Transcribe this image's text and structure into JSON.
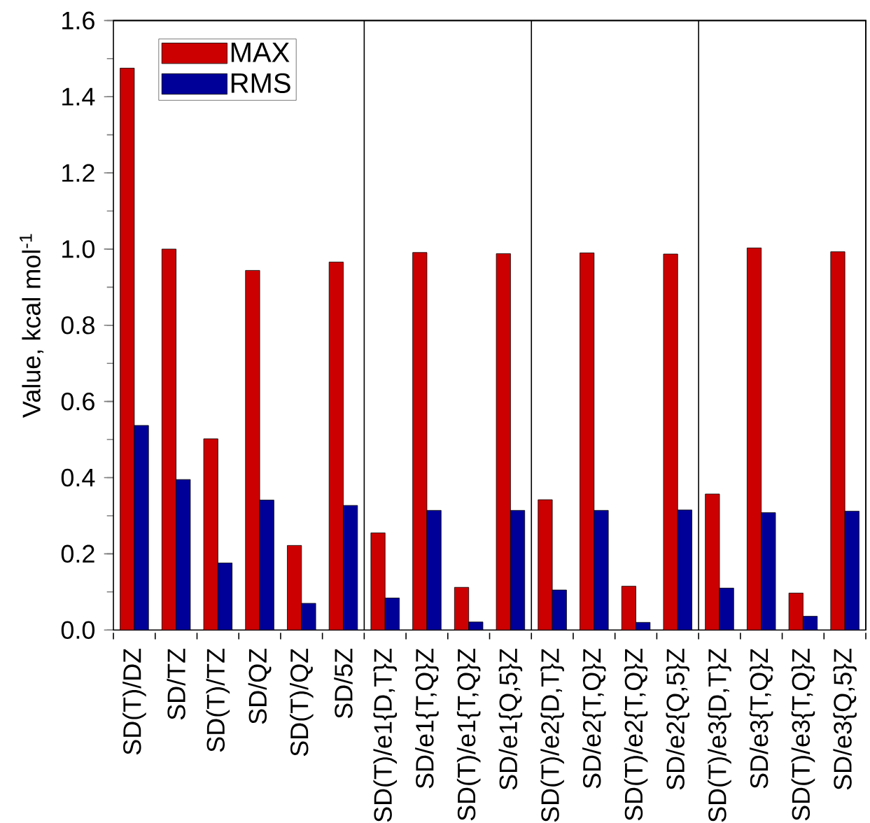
{
  "chart_data": {
    "type": "bar",
    "ylabel": "Value, kcal mol$^{-1}$",
    "categories": [
      "SD(T)/DZ",
      "SD/TZ",
      "SD(T)/TZ",
      "SD/QZ",
      "SD(T)/QZ",
      "SD/5Z",
      "SD(T)/e1{D,T}Z",
      "SD/e1{T,Q}Z",
      "SD(T)/e1{T,Q}Z",
      "SD/e1{Q,5}Z",
      "SD(T)/e2{D,T}Z",
      "SD/e2{T,Q}Z",
      "SD(T)/e2{T,Q}Z",
      "SD/e2{Q,5}Z",
      "SD(T)/e3{D,T}Z",
      "SD/e3{T,Q}Z",
      "SD(T)/e3{T,Q}Z",
      "SD/e3{Q,5}Z"
    ],
    "series": [
      {
        "name": "MAX",
        "color": "#cc0000",
        "values": [
          1.475,
          1.0,
          0.502,
          0.944,
          0.222,
          0.966,
          0.255,
          0.991,
          0.112,
          0.988,
          0.342,
          0.99,
          0.115,
          0.987,
          0.357,
          1.003,
          0.097,
          0.993
        ]
      },
      {
        "name": "RMS",
        "color": "#000099",
        "values": [
          0.537,
          0.395,
          0.176,
          0.341,
          0.07,
          0.327,
          0.084,
          0.314,
          0.021,
          0.314,
          0.105,
          0.314,
          0.02,
          0.315,
          0.11,
          0.308,
          0.036,
          0.312
        ]
      }
    ],
    "ylim": [
      0,
      1.6
    ],
    "yticks": [
      {
        "value": 0,
        "label": "0.0"
      },
      {
        "value": 0.2,
        "label": "0.2"
      },
      {
        "value": 0.4,
        "label": "0.4"
      },
      {
        "value": 0.6,
        "label": "0.6"
      },
      {
        "value": 0.8,
        "label": "0.8"
      },
      {
        "value": 1.0,
        "label": "1.0"
      },
      {
        "value": 1.2,
        "label": "1.2"
      },
      {
        "value": 1.4,
        "label": "1.4"
      },
      {
        "value": 1.6,
        "label": "1.6"
      }
    ],
    "legend": "top left",
    "grid": false
  }
}
